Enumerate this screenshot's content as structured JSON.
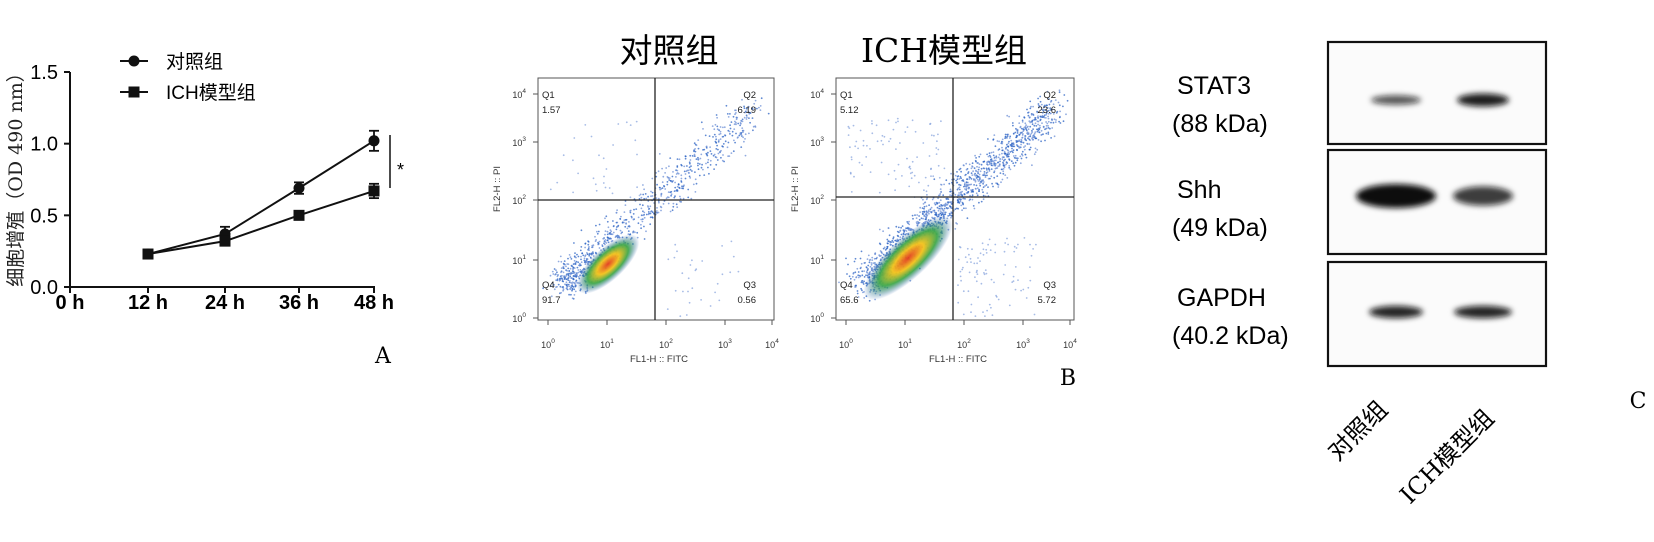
{
  "panel_labels": {
    "a": "A",
    "b": "B",
    "c": "C"
  },
  "chart_data": [
    {
      "type": "line",
      "panel": "A",
      "x": [
        "0 h",
        "12 h",
        "24 h",
        "36 h",
        "48 h"
      ],
      "ylabel": "细胞增殖（OD 490 nm）",
      "ylim": [
        0.0,
        1.5
      ],
      "yticks": [
        "0.0",
        "0.5",
        "1.0",
        "1.5"
      ],
      "series": [
        {
          "name": "对照组",
          "marker": "circle",
          "values": [
            null,
            0.23,
            0.37,
            0.69,
            1.02
          ],
          "errors": [
            null,
            0.02,
            0.05,
            0.04,
            0.07
          ]
        },
        {
          "name": "ICH模型组",
          "marker": "square",
          "values": [
            null,
            0.23,
            0.32,
            0.5,
            0.67
          ],
          "errors": [
            null,
            0.02,
            0.03,
            0.02,
            0.05
          ]
        }
      ],
      "annotation": "*",
      "legend_position": "top-left"
    },
    {
      "type": "scatter",
      "panel": "B",
      "plots": [
        {
          "title": "对照组",
          "xlabel": "FL1-H :: FITC",
          "ylabel": "FL2-H :: PI",
          "quadrants": [
            {
              "name": "Q1",
              "value": "1.57"
            },
            {
              "name": "Q2",
              "value": "6.19"
            },
            {
              "name": "Q3",
              "value": "0.56"
            },
            {
              "name": "Q4",
              "value": "91.7"
            }
          ]
        },
        {
          "title": "ICH模型组",
          "xlabel": "FL1-H :: FITC",
          "ylabel": "FL2-H :: PI",
          "quadrants": [
            {
              "name": "Q1",
              "value": "5.12"
            },
            {
              "name": "Q2",
              "value": "23.6"
            },
            {
              "name": "Q3",
              "value": "5.72"
            },
            {
              "name": "Q4",
              "value": "65.6"
            }
          ]
        }
      ],
      "tick_bases": [
        "10",
        "10",
        "10",
        "10",
        "10"
      ],
      "tick_exps": [
        "0",
        "1",
        "2",
        "3",
        "4"
      ]
    },
    {
      "type": "table",
      "panel": "C",
      "rows": [
        {
          "name": "STAT3",
          "size": "(88 kDa)",
          "band_intensity": [
            0.55,
            0.9
          ]
        },
        {
          "name": "Shh",
          "size": "(49 kDa)",
          "band_intensity": [
            1.0,
            0.7
          ]
        },
        {
          "name": "GAPDH",
          "size": "(40.2 kDa)",
          "band_intensity": [
            0.85,
            0.85
          ]
        }
      ],
      "columns": [
        "对照组",
        "ICH模型组"
      ]
    }
  ]
}
